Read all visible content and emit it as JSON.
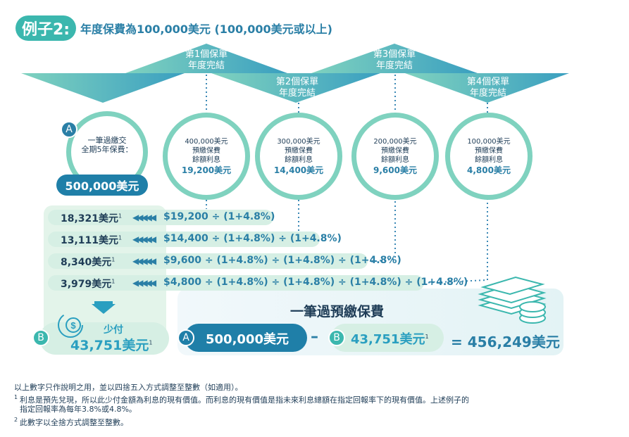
{
  "header": {
    "example_label": "例子2:",
    "title": "年度保費為100,000美元 (100,000美元或以上)"
  },
  "policy_years": [
    {
      "line1": "第1個保單",
      "line2": "年度完結"
    },
    {
      "line1": "第2個保單",
      "line2": "年度完結"
    },
    {
      "line1": "第3個保單",
      "line2": "年度完結"
    },
    {
      "line1": "第4個保單",
      "line2": "年度完結"
    }
  ],
  "lump_sum": {
    "badge": "A",
    "line1": "一筆過繳交",
    "line2": "全期5年保費：",
    "amount": "500,000美元"
  },
  "prepaid_circles": [
    {
      "amount": "400,000美元",
      "line1": "預繳保費",
      "line2": "餘額利息",
      "interest": "19,200美元"
    },
    {
      "amount": "300,000美元",
      "line1": "預繳保費",
      "line2": "餘額利息",
      "interest": "14,400美元"
    },
    {
      "amount": "200,000美元",
      "line1": "預繳保費",
      "line2": "餘額利息",
      "interest": "9,600美元"
    },
    {
      "amount": "100,000美元",
      "line1": "預繳保費",
      "line2": "餘額利息",
      "interest": "4,800美元"
    }
  ],
  "rows": [
    {
      "value": "18,321美元",
      "note": "1",
      "formula": "$19,200 ÷ (1+4.8%)"
    },
    {
      "value": "13,111美元",
      "note": "1",
      "formula": "$14,400 ÷ (1+4.8%) ÷ (1+4.8%)"
    },
    {
      "value": "8,340美元",
      "note": "1",
      "formula": "$9,600 ÷ (1+4.8%) ÷ (1+4.8%) ÷ (1+4.8%)"
    },
    {
      "value": "3,979美元",
      "note": "1",
      "formula": "$4,800 ÷ (1+4.8%) ÷ (1+4.8%) ÷ (1+4.8%) ÷ (1+4.8%)"
    }
  ],
  "less_pay": {
    "badge": "B",
    "label": "少付",
    "amount": "43,751美元",
    "note": "1",
    "dollar_symbol": "$"
  },
  "summary": {
    "heading": "一筆過預繳保費",
    "a_badge": "A",
    "a_amount": "500,000美元",
    "minus": "–",
    "b_badge": "B",
    "b_amount": "43,751美元",
    "b_note": "1",
    "equals": "=",
    "result": "456,249美元"
  },
  "footnotes": {
    "intro": "以上數字只作說明之用，並以四捨五入方式調整至整數（如適用）。",
    "n1_mark": "1",
    "n1_line1": "利息是預先兌現，所以此少付金額為利息的現有價值。而利息的現有價值是指未來利息總額在指定回報率下的現有價值。上述例子的",
    "n1_line2": "指定回報率為每年3.8%或4.8%。",
    "n2_mark": "2",
    "n2_text": "此數字以全捨方式調整至整數。"
  },
  "colors": {
    "teal": "#3bb7ae",
    "blue": "#2a7fa6",
    "light": "#d6efe4",
    "dark": "#1f3d57"
  }
}
